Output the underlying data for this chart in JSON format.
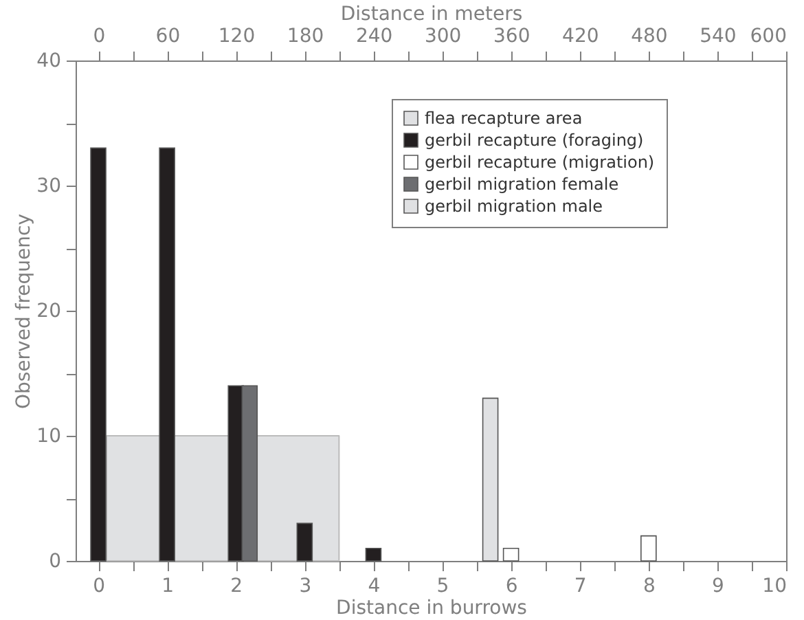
{
  "chart_data": {
    "type": "bar",
    "xlabel": "Distance in burrows",
    "ylabel": "Observed frequency",
    "x2label": "Distance in meters",
    "xlim": [
      -0.33,
      10
    ],
    "xticks": [
      0,
      {
        "value": 0.5,
        "label": null
      },
      1,
      {
        "value": 1.5,
        "label": null
      },
      2,
      {
        "value": 2.5,
        "label": null
      },
      3,
      {
        "value": 3.5,
        "label": null
      },
      4,
      {
        "value": 4.5,
        "label": null
      },
      5,
      {
        "value": 5.5,
        "label": null
      },
      6,
      {
        "value": 6.5,
        "label": null
      },
      7,
      {
        "value": 7.5,
        "label": null
      },
      8,
      {
        "value": 8.5,
        "label": null
      },
      9,
      {
        "value": 9.5,
        "label": null
      },
      10
    ],
    "x2lim": [
      -20,
      600
    ],
    "x2ticks": [
      0,
      {
        "value": 30,
        "label": null
      },
      60,
      {
        "value": 90,
        "label": null
      },
      120,
      {
        "value": 150,
        "label": null
      },
      180,
      {
        "value": 210,
        "label": null
      },
      240,
      {
        "value": 270,
        "label": null
      },
      300,
      {
        "value": 330,
        "label": null
      },
      360,
      {
        "value": 390,
        "label": null
      },
      420,
      {
        "value": 450,
        "label": null
      },
      480,
      {
        "value": 510,
        "label": null
      },
      540,
      {
        "value": 570,
        "label": null
      },
      600
    ],
    "ylim": [
      0,
      40
    ],
    "yticks": [
      0,
      {
        "value": 5,
        "label": null
      },
      10,
      {
        "value": 15,
        "label": null
      },
      20,
      {
        "value": 25,
        "label": null
      },
      30,
      {
        "value": 35,
        "label": null
      },
      40
    ],
    "legend": "top right",
    "series": [
      {
        "name": "flea recapture area",
        "type": "area",
        "color": "#e0e1e3",
        "x": [
          0.12,
          3.5
        ],
        "values": [
          10,
          10
        ]
      },
      {
        "name": "gerbil recapture (foraging)",
        "color": "#231f20",
        "x": [
          0,
          1,
          2,
          3,
          4
        ],
        "values": [
          33,
          33,
          14,
          3,
          1
        ]
      },
      {
        "name": "gerbil recapture (migration)",
        "color": "#ffffff",
        "x": [
          6,
          8
        ],
        "values": [
          1,
          2
        ]
      },
      {
        "name": "gerbil migration female",
        "color": "#6d6e71",
        "x": [
          2.2
        ],
        "values": [
          14
        ]
      },
      {
        "name": "gerbil migration male",
        "color": "#e0e1e3",
        "x": [
          5.7
        ],
        "values": [
          13
        ]
      }
    ]
  }
}
